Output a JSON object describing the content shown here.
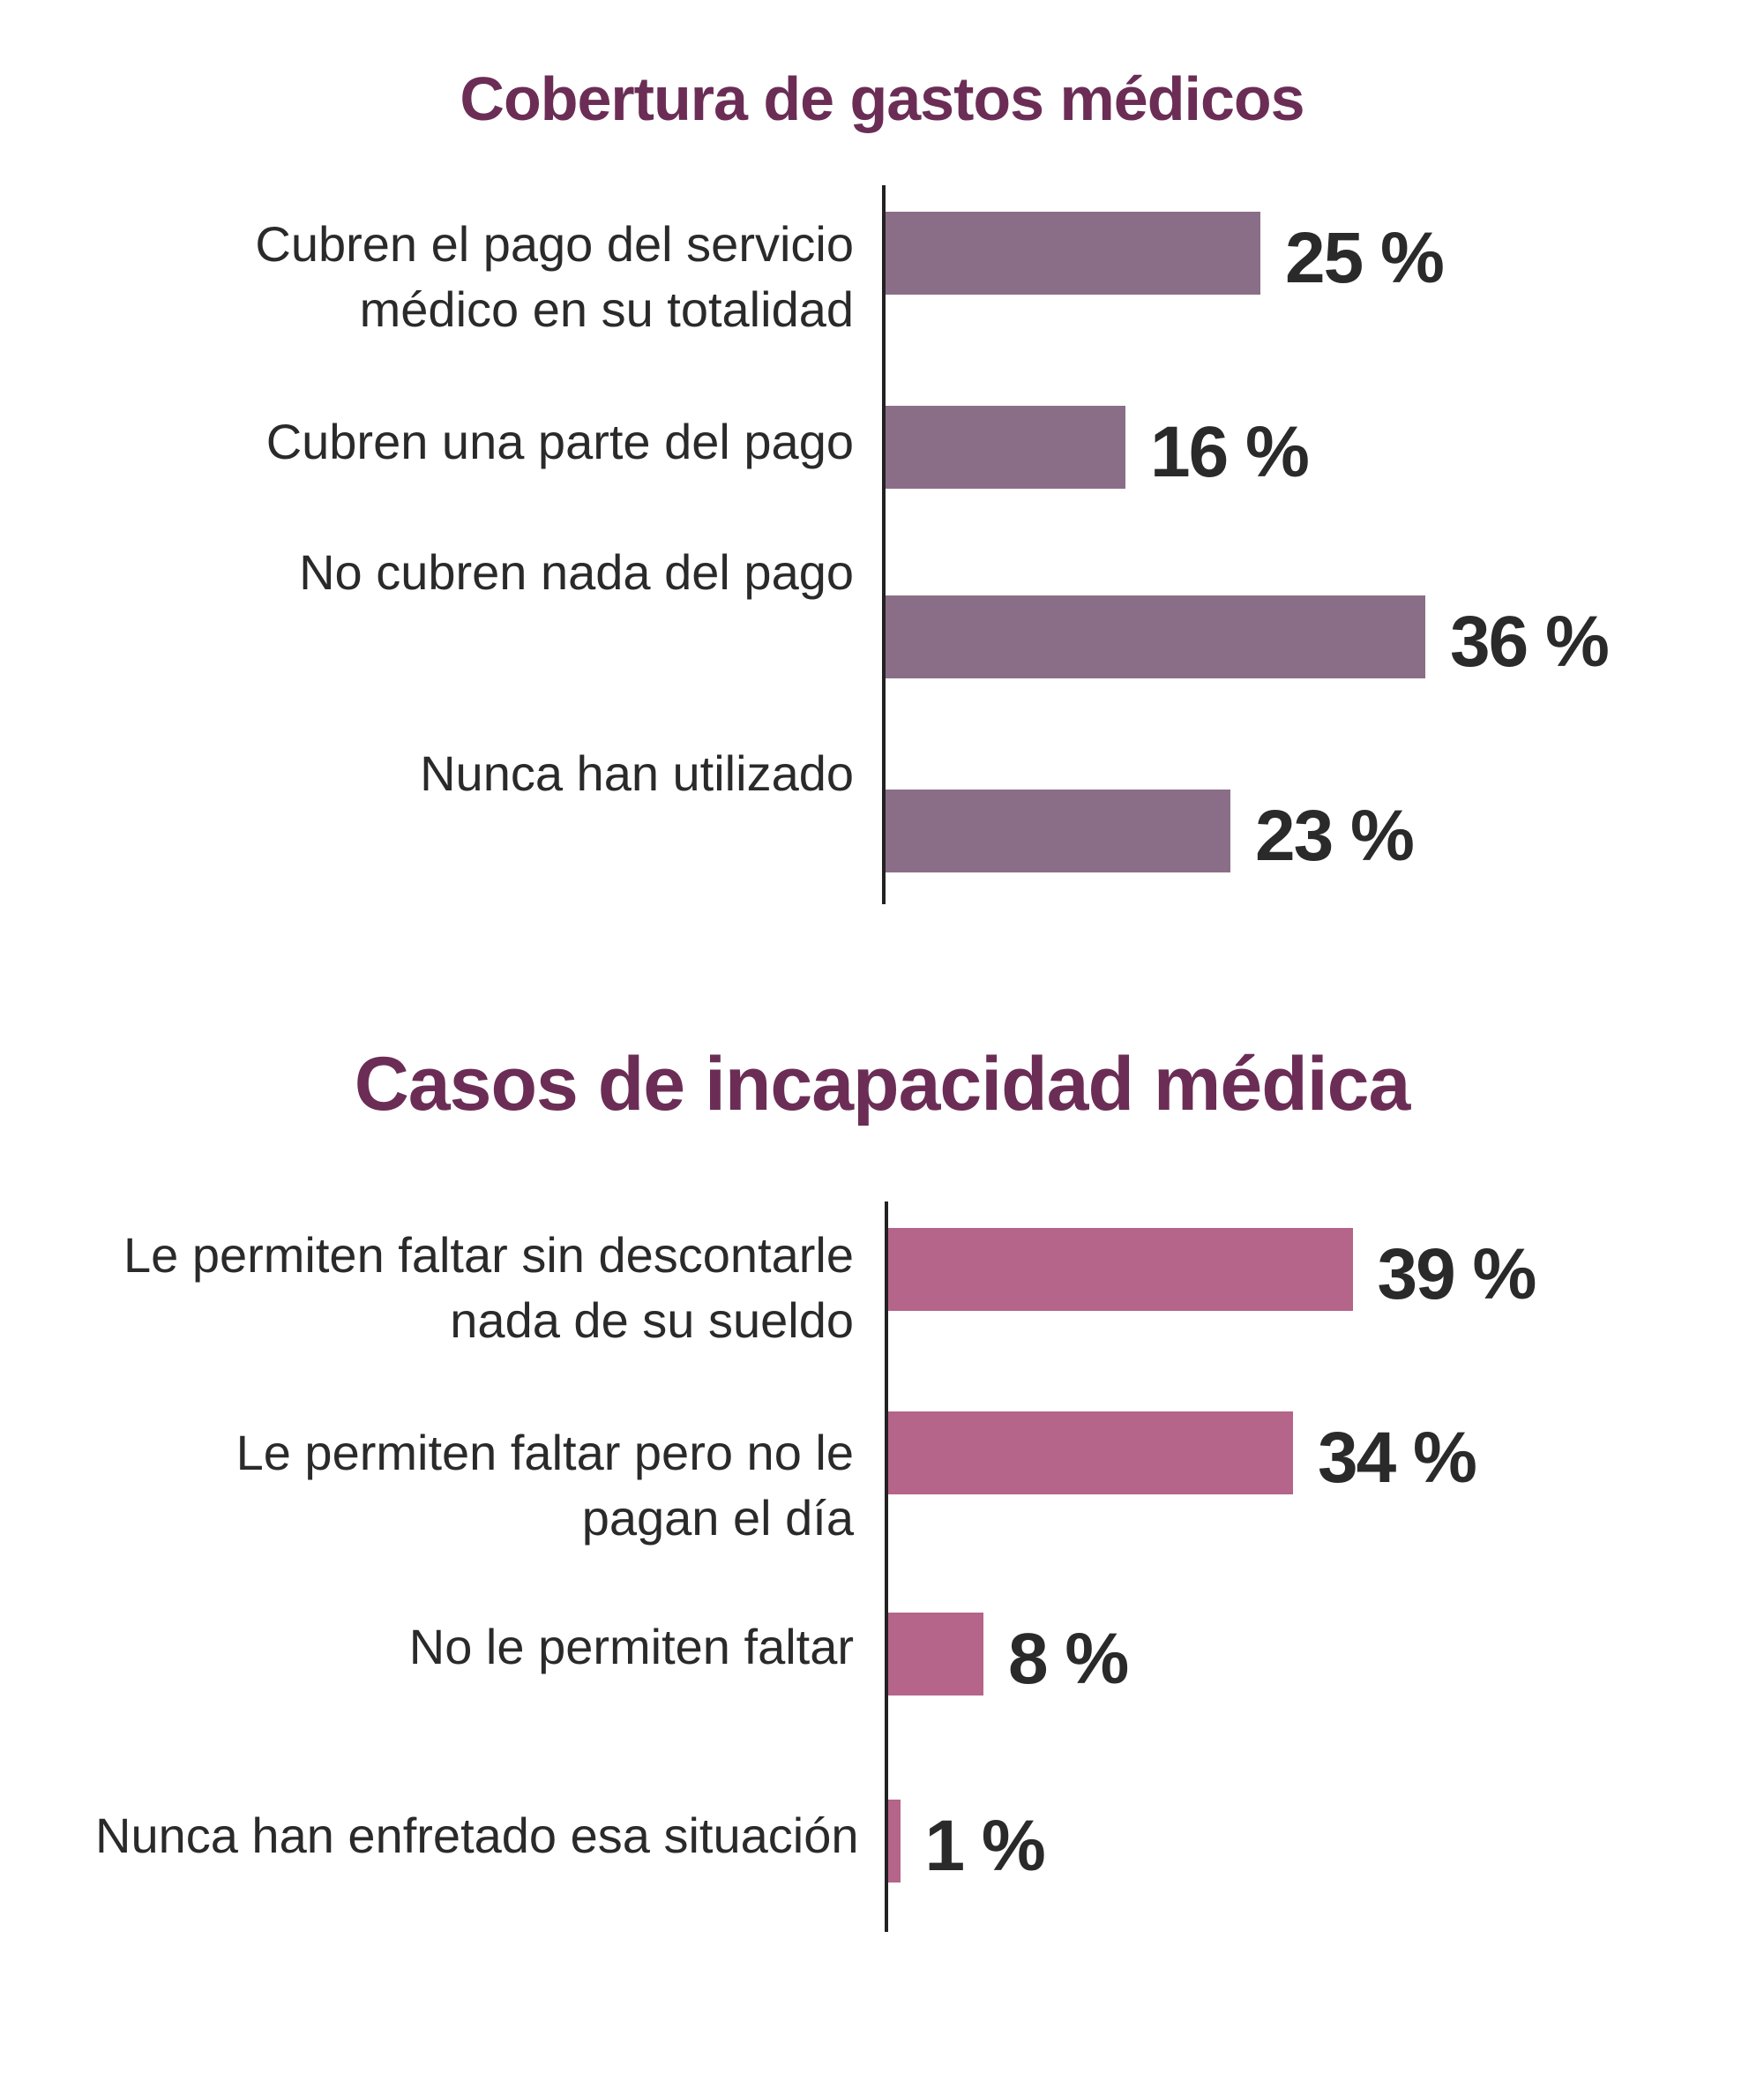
{
  "chart_data": [
    {
      "type": "bar",
      "orientation": "horizontal",
      "title": "Cobertura de gastos médicos",
      "categories": [
        "Cubren el pago del servicio médico en su totalidad",
        "Cubren una parte del pago",
        "No cubren nada del pago",
        "Nunca han utilizado"
      ],
      "category_lines": [
        [
          "Cubren el pago del servicio",
          "médico en su totalidad"
        ],
        [
          "Cubren una parte del pago"
        ],
        [
          "No cubren nada del pago"
        ],
        [
          "Nunca han utilizado"
        ]
      ],
      "values": [
        25,
        16,
        36,
        23
      ],
      "value_labels": [
        "25 %",
        "16 %",
        "36 %",
        "23 %"
      ],
      "unit": "%",
      "bar_color": "#8a6e87",
      "title_color": "#6b2d55",
      "grid": false,
      "legend": "none"
    },
    {
      "type": "bar",
      "orientation": "horizontal",
      "title": "Casos de incapacidad médica",
      "categories": [
        "Le permiten faltar sin descontarle nada de su sueldo",
        "Le permiten faltar pero no le pagan el día",
        "No le permiten faltar",
        "Nunca han enfretado esa situación"
      ],
      "category_lines": [
        [
          "Le permiten faltar sin descontarle",
          "nada de su sueldo"
        ],
        [
          "Le permiten faltar pero no le",
          "pagan el día"
        ],
        [
          "No le permiten faltar"
        ],
        [
          "Nunca han enfretado esa situación"
        ]
      ],
      "values": [
        39,
        34,
        8,
        1
      ],
      "value_labels": [
        "39 %",
        "34 %",
        "8 %",
        "1 %"
      ],
      "unit": "%",
      "bar_color": "#b5648a",
      "title_color": "#6b2d55",
      "grid": false,
      "legend": "none"
    }
  ]
}
